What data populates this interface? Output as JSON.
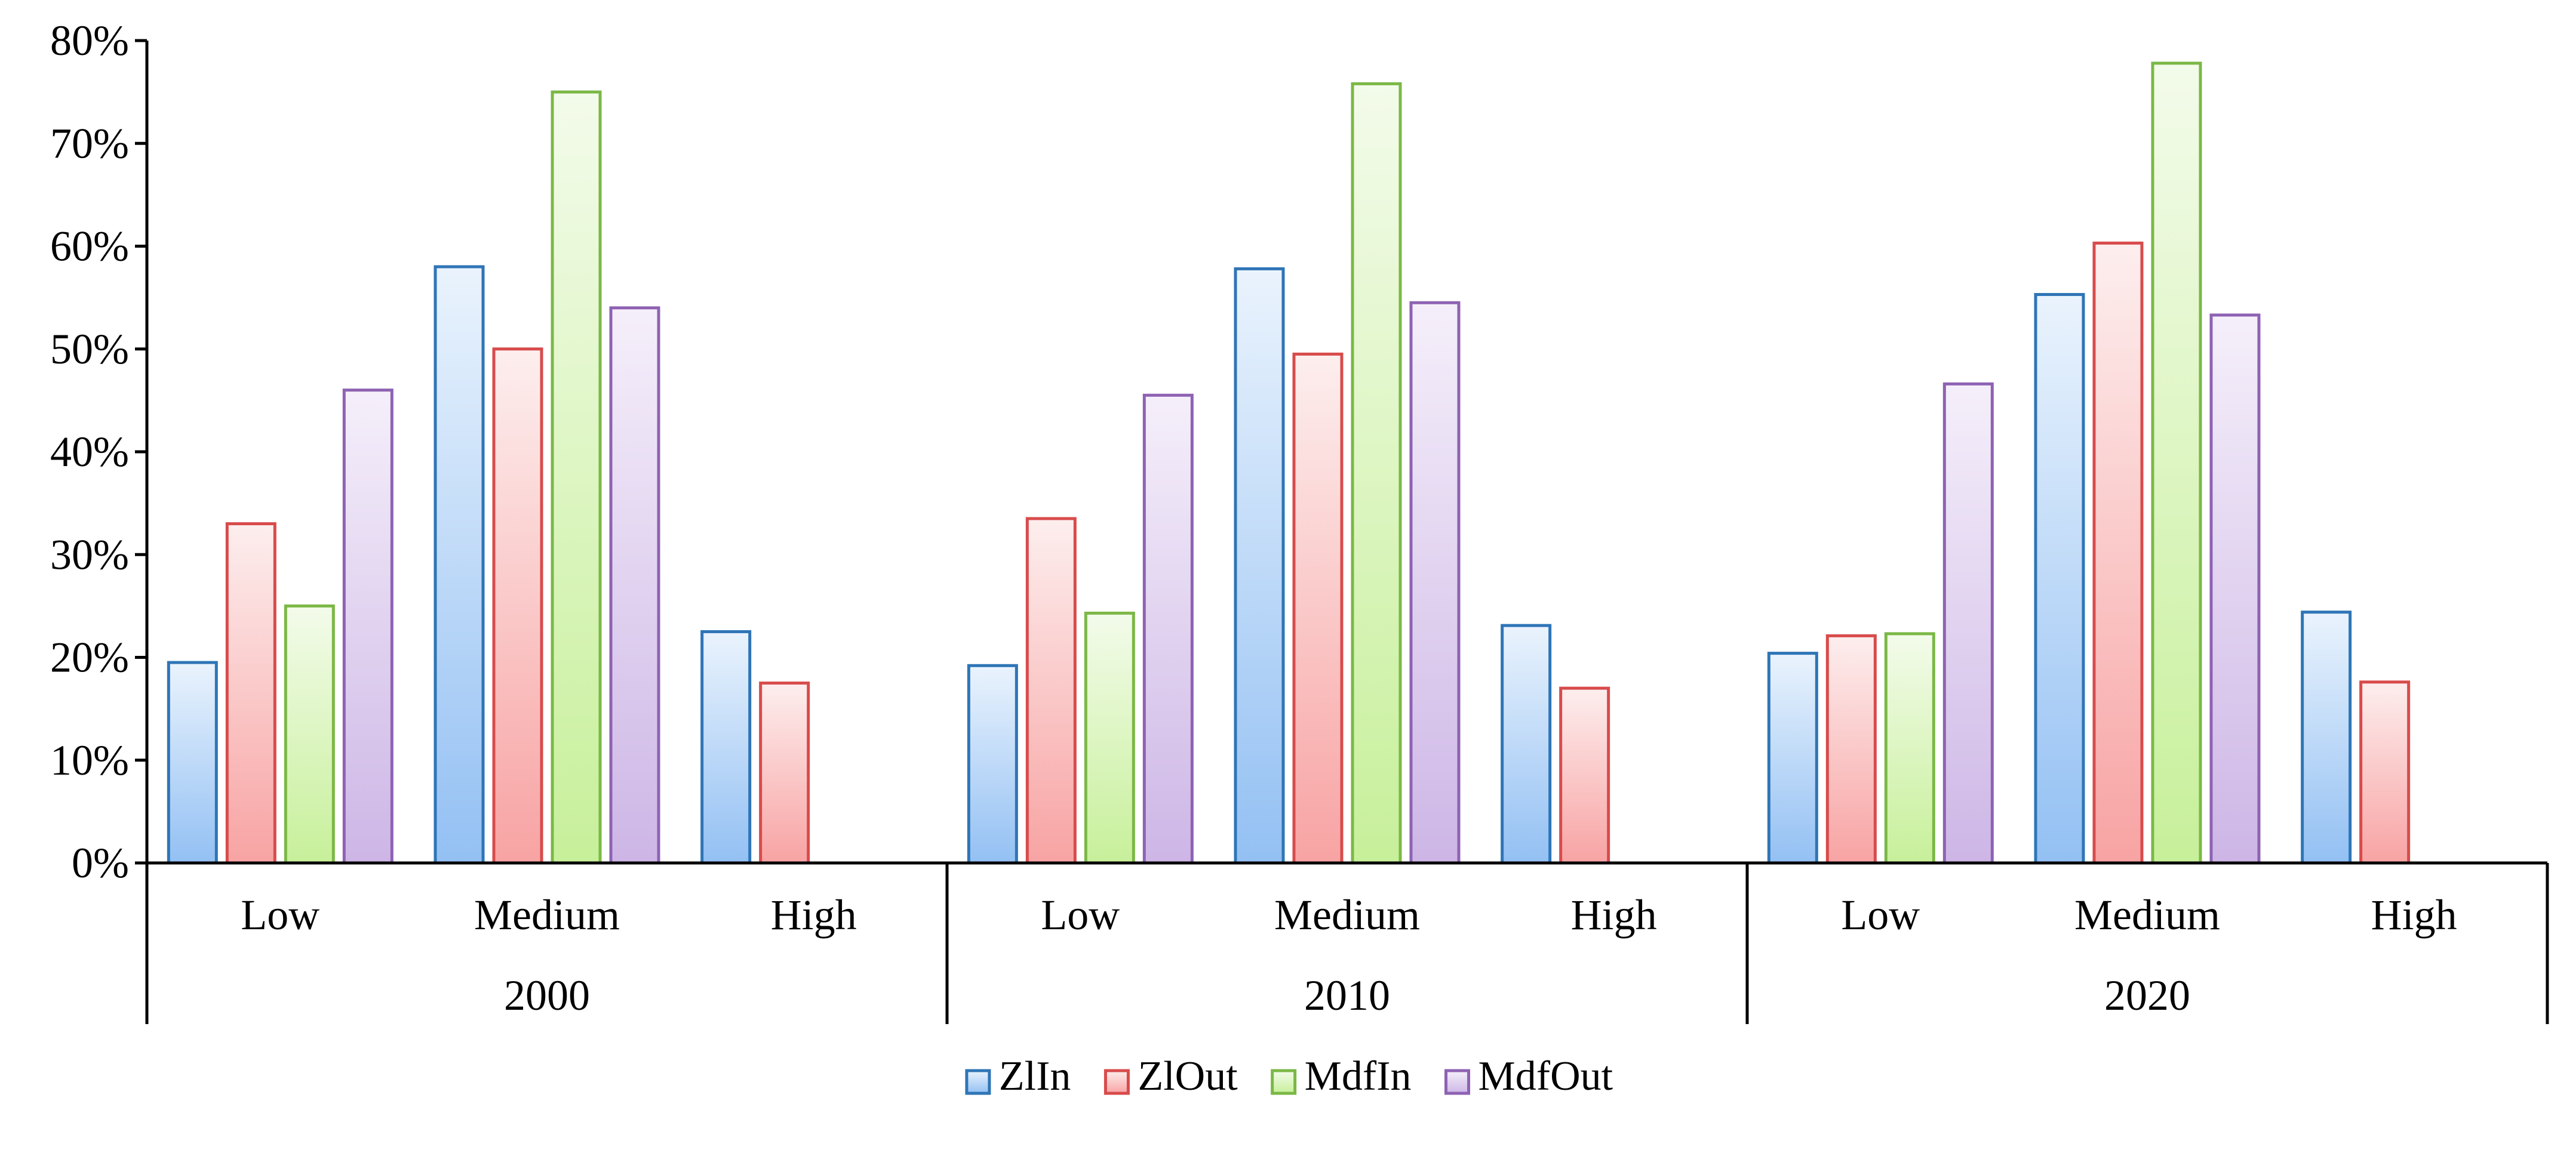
{
  "chart_data": {
    "type": "bar",
    "title": "",
    "xlabel": "",
    "ylabel": "",
    "ylim": [
      0,
      80
    ],
    "y_ticks": [
      "0%",
      "10%",
      "20%",
      "30%",
      "40%",
      "50%",
      "60%",
      "70%",
      "80%"
    ],
    "groups": [
      {
        "label": "2000",
        "categories": [
          {
            "label": "Low",
            "values": [
              19.5,
              33,
              25,
              46
            ]
          },
          {
            "label": "Medium",
            "values": [
              58,
              50,
              75,
              54
            ]
          },
          {
            "label": "High",
            "values": [
              22.5,
              17.5,
              0,
              0
            ]
          }
        ]
      },
      {
        "label": "2010",
        "categories": [
          {
            "label": "Low",
            "values": [
              19.2,
              33.5,
              24.3,
              45.5
            ]
          },
          {
            "label": "Medium",
            "values": [
              57.8,
              49.5,
              75.8,
              54.5
            ]
          },
          {
            "label": "High",
            "values": [
              23.1,
              17,
              0,
              0
            ]
          }
        ]
      },
      {
        "label": "2020",
        "categories": [
          {
            "label": "Low",
            "values": [
              20.4,
              22.1,
              22.3,
              46.6
            ]
          },
          {
            "label": "Medium",
            "values": [
              55.3,
              60.3,
              77.8,
              53.3
            ]
          },
          {
            "label": "High",
            "values": [
              24.4,
              17.6,
              0,
              0
            ]
          }
        ]
      }
    ],
    "series": [
      {
        "name": "ZlIn",
        "stroke": "#2e75b6",
        "fill_top": "#eaf3fd",
        "fill_bottom": "#93c0f3"
      },
      {
        "name": "ZlOut",
        "stroke": "#d84b4b",
        "fill_top": "#fdeeee",
        "fill_bottom": "#f8a3a3"
      },
      {
        "name": "MdfIn",
        "stroke": "#7bb846",
        "fill_top": "#f3fbea",
        "fill_bottom": "#c7f09a"
      },
      {
        "name": "MdfOut",
        "stroke": "#8e62b3",
        "fill_top": "#f5effa",
        "fill_bottom": "#cdb6e6"
      }
    ],
    "legend_position": "bottom",
    "grid": false
  }
}
